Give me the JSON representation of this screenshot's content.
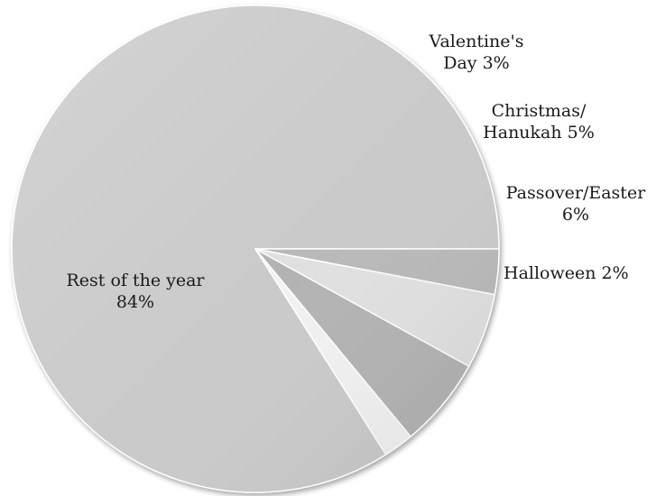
{
  "chart_data": {
    "type": "pie",
    "slices": [
      {
        "label_lines": [
          "Rest of the year",
          "84%"
        ],
        "name": "Rest of the year",
        "value": 84,
        "color": "#cacaca"
      },
      {
        "label_lines": [
          "Halloween 2%"
        ],
        "name": "Halloween",
        "value": 2,
        "color": "#f1f1f1"
      },
      {
        "label_lines": [
          "Passover/Easter",
          "6%"
        ],
        "name": "Passover/Easter",
        "value": 6,
        "color": "#b3b3b3"
      },
      {
        "label_lines": [
          "Christmas/",
          "Hanukah 5%"
        ],
        "name": "Christmas/Hanukah",
        "value": 5,
        "color": "#e0e0e0"
      },
      {
        "label_lines": [
          "Valentine's",
          "Day 3%"
        ],
        "name": "Valentine's Day",
        "value": 3,
        "color": "#b9b9b9"
      }
    ],
    "slice_order": "counterclockwise from the 3 o'clock position",
    "legend": "none",
    "style": "3D-shaded grayscale with white slice borders"
  }
}
